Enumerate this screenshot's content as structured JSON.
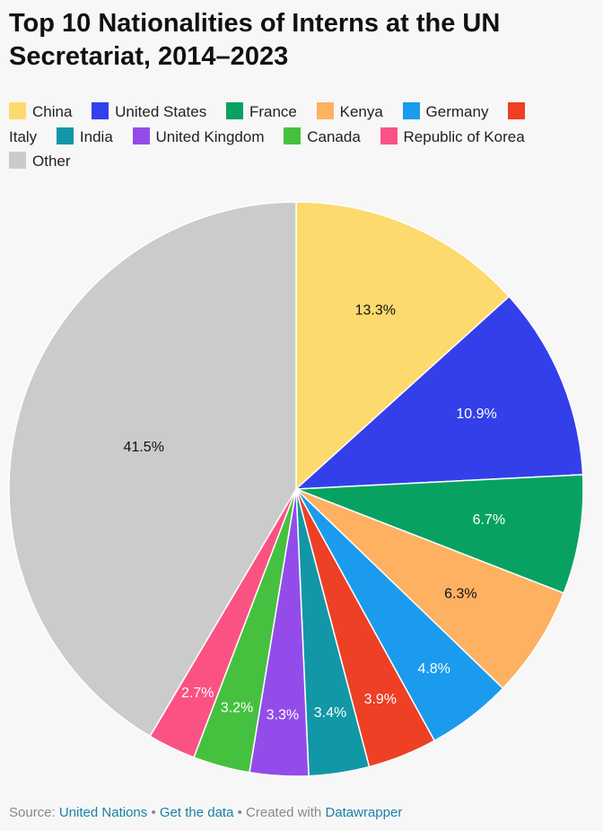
{
  "header": {
    "title": "Top 10 Nationalities of Interns at the UN Secretariat, 2014–2023"
  },
  "chart_data": {
    "type": "pie",
    "title": "Top 10 Nationalities of Interns at the UN Secretariat, 2014–2023",
    "slices": [
      {
        "label": "China",
        "value": 13.3,
        "display": "13.3%",
        "color": "#fdda6e",
        "text_color": "#111111"
      },
      {
        "label": "United States",
        "value": 10.9,
        "display": "10.9%",
        "color": "#3340ea",
        "text_color": "#ffffff"
      },
      {
        "label": "France",
        "value": 6.7,
        "display": "6.7%",
        "color": "#07a262",
        "text_color": "#ffffff"
      },
      {
        "label": "Kenya",
        "value": 6.3,
        "display": "6.3%",
        "color": "#fdb161",
        "text_color": "#111111"
      },
      {
        "label": "Germany",
        "value": 4.8,
        "display": "4.8%",
        "color": "#1b9bee",
        "text_color": "#ffffff"
      },
      {
        "label": "Italy",
        "value": 3.9,
        "display": "3.9%",
        "color": "#ed4025",
        "text_color": "#ffffff"
      },
      {
        "label": "India",
        "value": 3.4,
        "display": "3.4%",
        "color": "#1297a7",
        "text_color": "#ffffff"
      },
      {
        "label": "United Kingdom",
        "value": 3.3,
        "display": "3.3%",
        "color": "#934ce9",
        "text_color": "#ffffff"
      },
      {
        "label": "Canada",
        "value": 3.2,
        "display": "3.2%",
        "color": "#45c13f",
        "text_color": "#ffffff"
      },
      {
        "label": "Republic of Korea",
        "value": 2.7,
        "display": "2.7%",
        "color": "#fb5284",
        "text_color": "#ffffff"
      },
      {
        "label": "Other",
        "value": 41.5,
        "display": "41.5%",
        "color": "#cbcbcb",
        "text_color": "#111111"
      }
    ],
    "legend_position": "top"
  },
  "footer": {
    "source_prefix": "Source:",
    "source_link": "United Nations",
    "separator": "•",
    "data_link": "Get the data",
    "created_with": "Created with",
    "tool_link": "Datawrapper"
  }
}
